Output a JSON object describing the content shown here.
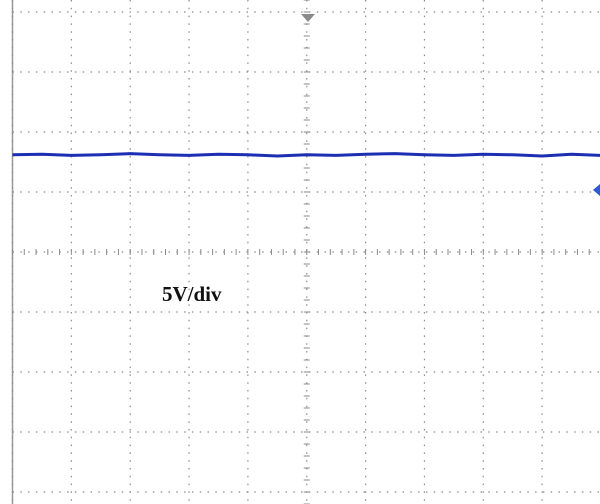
{
  "chart_data": {
    "type": "line",
    "annotation": "5V/div",
    "x": [
      0,
      0.5,
      1,
      1.5,
      2,
      2.5,
      3,
      3.5,
      4,
      4.5,
      5,
      5.5,
      6,
      6.5,
      7,
      7.5,
      8,
      8.5,
      9,
      9.5,
      10
    ],
    "series": [
      {
        "color": "#1c2fb2",
        "values": [
          1.62,
          1.63,
          1.61,
          1.62,
          1.64,
          1.62,
          1.61,
          1.63,
          1.62,
          1.6,
          1.62,
          1.61,
          1.63,
          1.64,
          1.62,
          1.61,
          1.63,
          1.62,
          1.6,
          1.63,
          1.61
        ]
      }
    ],
    "xlim": [
      0,
      10
    ],
    "xticks": [
      0,
      1,
      2,
      3,
      4,
      5,
      6,
      7,
      8,
      9,
      10
    ],
    "ylim": [
      -4,
      4
    ],
    "yticks": [
      -4,
      -3,
      -2,
      -1,
      0,
      1,
      2,
      3,
      4
    ],
    "grid": true
  }
}
